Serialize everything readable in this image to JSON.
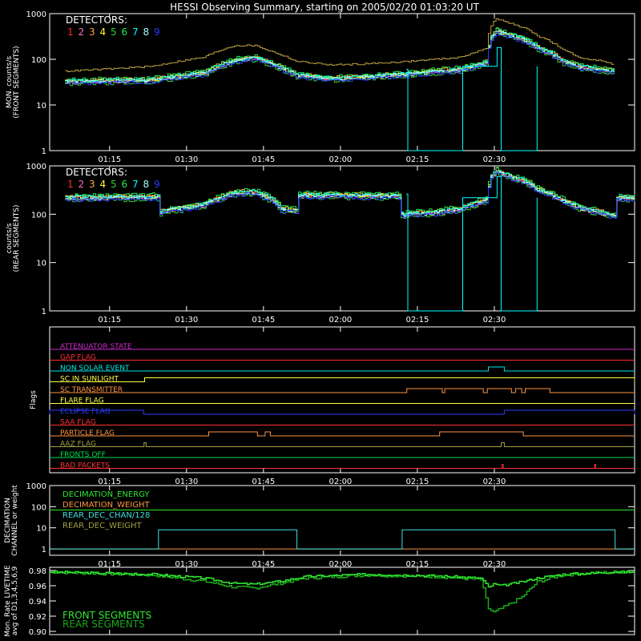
{
  "title": "HESSI Observing Summary, starting on 2005/02/20 01:03:20 UT",
  "x_ticks": [
    "01:15",
    "01:30",
    "01:45",
    "02:00",
    "02:15",
    "02:30"
  ],
  "colors": {
    "det": [
      "#ff2a2a",
      "#ff6fb4",
      "#ffa733",
      "#ffff2e",
      "#33cc33",
      "#22ee55",
      "#00ffff",
      "#a0ffff",
      "#2a3cff"
    ],
    "attenuator": "#cc2bcc",
    "gap": "#ff3030",
    "nonsolar": "#00e5e5",
    "sunlight": "#ffff40",
    "transmitter": "#ff9440",
    "flare": "#ffff40",
    "eclipse": "#2a3cff",
    "saa": "#ff3030",
    "particle": "#ff9440",
    "aaz": "#a0a040",
    "fronts": "#00e050",
    "bad": "#ff3030",
    "total": "#b9a040",
    "front_live": "#2ee62e",
    "rear_live": "#1aa81a"
  },
  "chart_data": [
    {
      "id": "front",
      "type": "line",
      "ylabel": [
        "MON. counts/s",
        "(FRONT SEGMENTS)"
      ],
      "y_scale": "log",
      "ylim": [
        1,
        1000
      ],
      "y_ticks": [
        "1",
        "10",
        "100",
        "1000"
      ],
      "legend_title": "DETECTORS:",
      "legend_labels": [
        "1",
        "2",
        "3",
        "4",
        "5",
        "6",
        "7",
        "8",
        "9"
      ],
      "series_base": {
        "x_minutes": [
          3,
          10,
          20,
          30,
          36,
          40,
          43,
          48,
          55,
          62,
          70,
          75,
          80,
          85,
          86,
          87,
          88,
          93,
          95,
          100,
          103,
          107,
          110
        ],
        "y": [
          33,
          34,
          36,
          50,
          95,
          110,
          80,
          45,
          38,
          42,
          48,
          55,
          60,
          85,
          300,
          420,
          380,
          250,
          180,
          90,
          70,
          60,
          55
        ]
      },
      "total_series": {
        "x_minutes": [
          3,
          10,
          20,
          30,
          36,
          40,
          43,
          48,
          55,
          62,
          70,
          75,
          80,
          85,
          86,
          87,
          88,
          93,
          95,
          100,
          103,
          107,
          110
        ],
        "y": [
          55,
          60,
          70,
          110,
          200,
          200,
          150,
          90,
          75,
          80,
          90,
          100,
          110,
          170,
          550,
          800,
          700,
          450,
          330,
          160,
          110,
          95,
          75
        ]
      },
      "dropout": {
        "x_minutes": [
          69.5,
          69.8,
          76.5,
          80.5,
          84,
          87.2,
          88,
          95
        ],
        "y": [
          60,
          1,
          1,
          70,
          70,
          180,
          1,
          70
        ]
      }
    },
    {
      "id": "rear",
      "type": "line",
      "ylabel": [
        "counts/s",
        "(REAR SEGMENTS)"
      ],
      "y_scale": "log",
      "ylim": [
        1,
        1000
      ],
      "y_ticks": [
        "1",
        "10",
        "100",
        "1000"
      ],
      "legend_title": "DETECTORS:",
      "legend_labels": [
        "1",
        "2",
        "3",
        "4",
        "5",
        "6",
        "7",
        "8",
        "9"
      ],
      "series_base": {
        "x_minutes": [
          3,
          21,
          21.2,
          30,
          36,
          40,
          44,
          45,
          48,
          48.2,
          55,
          62,
          68,
          68.2,
          75,
          80,
          85,
          86,
          87,
          88,
          93,
          95,
          100,
          103,
          107,
          110,
          110.2,
          114
        ],
        "y": [
          220,
          230,
          110,
          160,
          280,
          290,
          180,
          130,
          120,
          250,
          250,
          240,
          240,
          100,
          110,
          130,
          200,
          600,
          800,
          700,
          450,
          330,
          190,
          140,
          110,
          95,
          220,
          220
        ]
      },
      "dropout": {
        "x_minutes": [
          69.5,
          69.8,
          76.5,
          80.5,
          84,
          87.2,
          88,
          95
        ],
        "y": [
          260,
          1,
          1,
          220,
          220,
          600,
          1,
          220
        ]
      }
    },
    {
      "id": "flags",
      "type": "table",
      "ylabel": "Flags",
      "rows": [
        {
          "name": "ATTENUATOR STATE",
          "key": "attenuator",
          "segments": []
        },
        {
          "name": "GAP FLAG",
          "key": "gap",
          "segments": []
        },
        {
          "name": "NON SOLAR EVENT",
          "key": "nonsolar",
          "segments": [
            [
              85.5,
              88.6
            ]
          ]
        },
        {
          "name": "SC IN SUNLIGHT",
          "key": "sunlight",
          "segments": [
            [
              18.5,
              114
            ]
          ]
        },
        {
          "name": "SC TRANSMITTER",
          "key": "transmitter",
          "segments": [
            [
              69.6,
              76.5
            ],
            [
              77,
              84.5
            ],
            [
              85.3,
              90
            ],
            [
              90.8,
              92
            ],
            [
              92.7,
              97.5
            ]
          ]
        },
        {
          "name": "FLARE FLAG",
          "key": "flare",
          "segments": []
        },
        {
          "name": "ECLIPSE FLAG",
          "key": "eclipse",
          "segments": [
            [
              0,
              18.3
            ],
            [
              88.6,
              114
            ]
          ],
          "inverse": true
        },
        {
          "name": "SAA FLAG",
          "key": "saa",
          "segments": []
        },
        {
          "name": "PARTICLE FLAG",
          "key": "particle",
          "segments": [
            [
              31,
              40.5
            ],
            [
              42,
              43
            ],
            [
              76,
              92.3
            ]
          ]
        },
        {
          "name": "AAZ FLAG",
          "key": "aaz",
          "segments": [
            [
              18.4,
              18.8
            ],
            [
              88,
              88.6
            ]
          ]
        },
        {
          "name": "FRONTS OFF",
          "key": "fronts",
          "segments": []
        },
        {
          "name": "BAD PACKETS",
          "key": "bad",
          "segments": [
            [
              88.2,
              88.4
            ],
            [
              106.2,
              106.4
            ]
          ]
        }
      ]
    },
    {
      "id": "decimation",
      "type": "line",
      "ylabel": [
        "DECIMATION",
        "CHANNEL or weight"
      ],
      "y_scale": "log",
      "ylim": [
        0.5,
        1000
      ],
      "y_ticks": [
        "1",
        "10",
        "100",
        "1000"
      ],
      "legend": [
        "DECIMATION_ENERGY",
        "DECIMATION_WEIGHT",
        "REAR_DEC_CHAN/128",
        "REAR_DEC_WEIGHT"
      ],
      "rear_dec_chan": {
        "x_minutes": [
          0,
          21,
          21.2,
          48,
          48.2,
          68.5,
          68.7,
          110,
          110.2,
          114
        ],
        "y": [
          1,
          1,
          8,
          8,
          1,
          1,
          8,
          8,
          1,
          1
        ]
      },
      "weight_y": 1,
      "energy_y": 70,
      "rear_weight_y": 1
    },
    {
      "id": "livetime",
      "type": "line",
      "ylabel": [
        "Mon. Rate LIVETIME",
        "avg of D1,3,4,5,6,9"
      ],
      "ylim": [
        0.9,
        0.98
      ],
      "y_ticks": [
        "0.90",
        "0.92",
        "0.94",
        "0.96",
        "0.98"
      ],
      "legend": [
        "FRONT SEGMENTS",
        "REAR SEGMENTS"
      ],
      "front": {
        "x_minutes": [
          0,
          20,
          30,
          36,
          40,
          44,
          50,
          62,
          75,
          84,
          85.5,
          86.5,
          88,
          92,
          95,
          100,
          104,
          110,
          114
        ],
        "y": [
          0.978,
          0.975,
          0.97,
          0.963,
          0.962,
          0.965,
          0.972,
          0.975,
          0.973,
          0.97,
          0.958,
          0.962,
          0.96,
          0.965,
          0.97,
          0.975,
          0.976,
          0.978,
          0.978
        ]
      },
      "rear": {
        "x_minutes": [
          0,
          20,
          30,
          36,
          40,
          44,
          50,
          62,
          75,
          84,
          85.5,
          86.5,
          88,
          92,
          95,
          100,
          104,
          110,
          114
        ],
        "y": [
          0.978,
          0.974,
          0.966,
          0.958,
          0.957,
          0.962,
          0.97,
          0.974,
          0.972,
          0.968,
          0.93,
          0.925,
          0.93,
          0.945,
          0.965,
          0.974,
          0.976,
          0.978,
          0.978
        ]
      }
    }
  ]
}
